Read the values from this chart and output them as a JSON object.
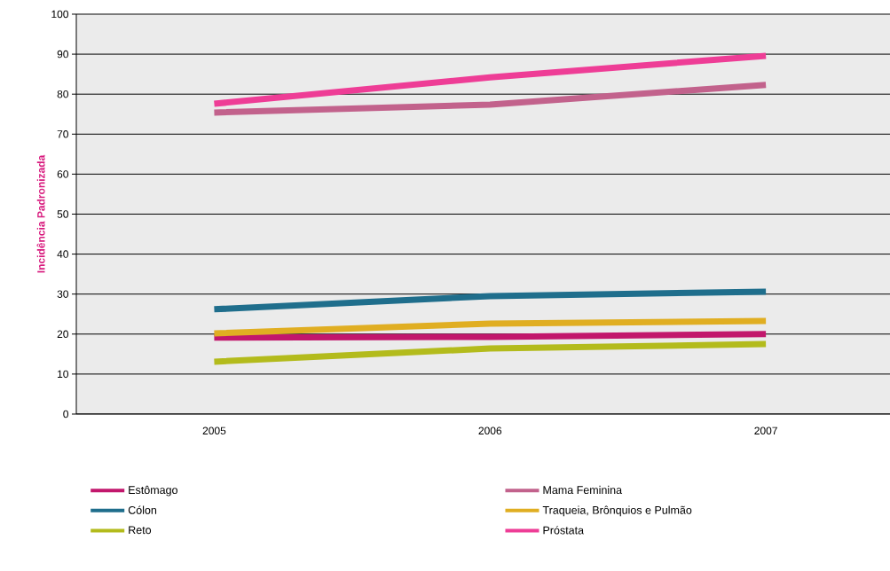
{
  "chart_data": {
    "type": "line",
    "ylabel": "Incidência Padronizada",
    "categories": [
      "2005",
      "2006",
      "2007"
    ],
    "series": [
      {
        "name": "Estômago",
        "color": "#c2176c",
        "values": [
          19.1,
          19.3,
          20.0
        ]
      },
      {
        "name": "Cólon",
        "color": "#1f6e8c",
        "values": [
          26.2,
          29.5,
          30.6
        ]
      },
      {
        "name": "Reto",
        "color": "#b3bb1c",
        "values": [
          13.1,
          16.4,
          17.5
        ]
      },
      {
        "name": "Mama Feminina",
        "color": "#c2628c",
        "values": [
          75.4,
          77.4,
          82.3
        ]
      },
      {
        "name": "Traqueia, Brônquios e Pulmão",
        "color": "#e0ae22",
        "values": [
          20.2,
          22.6,
          23.3
        ]
      },
      {
        "name": "Próstata",
        "color": "#ee3d96",
        "values": [
          77.6,
          84.2,
          89.6
        ]
      }
    ],
    "ylim": [
      0,
      100
    ],
    "yticks": [
      0,
      10,
      20,
      30,
      40,
      50,
      60,
      70,
      80,
      90,
      100
    ],
    "grid": "y",
    "legend": "bottom",
    "line_style": "solid",
    "marker": "none"
  }
}
